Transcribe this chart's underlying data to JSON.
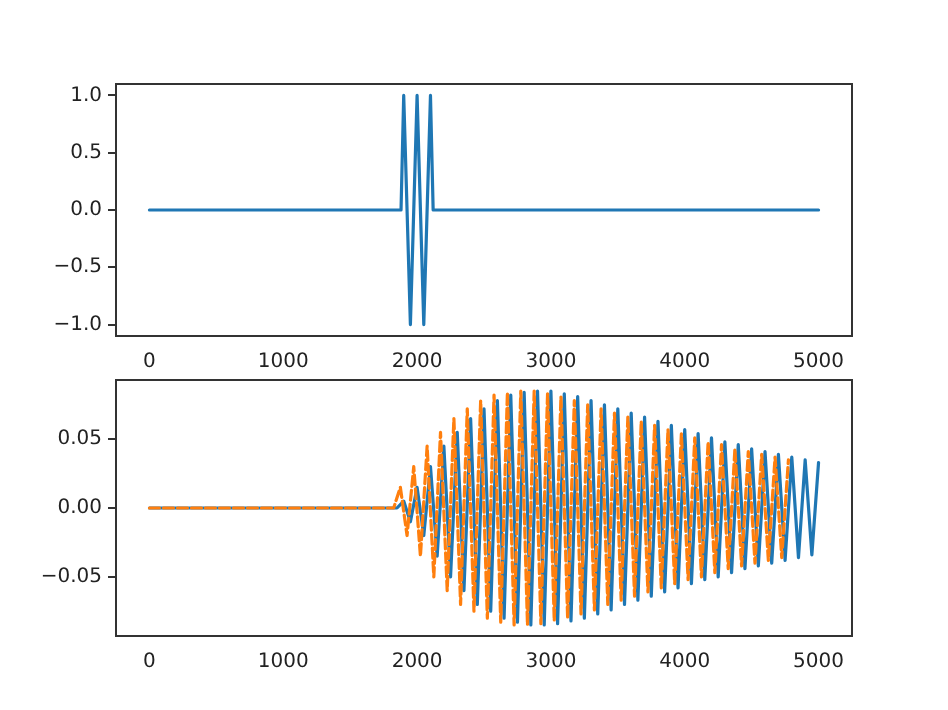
{
  "chart_data": [
    {
      "type": "line",
      "marker": "none",
      "line_style": "solid",
      "xlim": [
        -250,
        5250
      ],
      "xticks": [
        0,
        1000,
        2000,
        3000,
        4000,
        5000
      ],
      "ylim": [
        -1.1,
        1.1
      ],
      "yticks": [
        {
          "value": -1,
          "label": "−1.0"
        },
        {
          "value": -0.5,
          "label": "−0.5"
        },
        {
          "value": 0,
          "label": "0.0"
        },
        {
          "value": 0.5,
          "label": "0.5"
        },
        {
          "value": 1,
          "label": "1.0"
        }
      ],
      "series": [
        {
          "color": "#1f77b4",
          "x": [
            0,
            1880,
            1900,
            1950,
            2000,
            2050,
            2100,
            2120,
            5000
          ],
          "values": [
            0,
            0,
            1,
            -1,
            1,
            -1,
            1,
            0,
            0
          ]
        }
      ]
    },
    {
      "type": "line",
      "marker": "none",
      "xlim": [
        -250,
        5250
      ],
      "xticks": [
        0,
        1000,
        2000,
        3000,
        4000,
        5000
      ],
      "ylim": [
        -0.093,
        0.093
      ],
      "yticks": [
        {
          "value": -0.05,
          "label": "−0.05"
        },
        {
          "value": 0,
          "label": "0.00"
        },
        {
          "value": 0.05,
          "label": "0.05"
        }
      ],
      "series": [
        {
          "color": "#1f77b4",
          "line_style": "solid",
          "x": [
            0,
            1850,
            1900,
            1950,
            2000,
            2050,
            2100,
            2150,
            2200,
            2250,
            2300,
            2350,
            2400,
            2450,
            2500,
            2550,
            2600,
            2650,
            2700,
            2750,
            2800,
            2850,
            2900,
            2950,
            3000,
            3050,
            3100,
            3150,
            3200,
            3250,
            3300,
            3350,
            3400,
            3450,
            3500,
            3550,
            3600,
            3650,
            3700,
            3750,
            3800,
            3850,
            3900,
            3950,
            4000,
            4050,
            4100,
            4150,
            4200,
            4250,
            4300,
            4350,
            4400,
            4450,
            4500,
            4550,
            4600,
            4650,
            4700,
            4750,
            4800,
            4850,
            4900,
            4950,
            5000
          ],
          "values": [
            0,
            0,
            0.005,
            -0.01,
            0.015,
            -0.02,
            0.03,
            -0.035,
            0.045,
            -0.05,
            0.055,
            -0.06,
            0.065,
            -0.07,
            0.072,
            -0.075,
            0.078,
            -0.08,
            0.082,
            -0.083,
            0.084,
            -0.085,
            0.085,
            -0.085,
            0.085,
            -0.084,
            0.083,
            -0.082,
            0.081,
            -0.08,
            0.078,
            -0.077,
            0.075,
            -0.074,
            0.072,
            -0.07,
            0.069,
            -0.067,
            0.066,
            -0.064,
            0.063,
            -0.061,
            0.06,
            -0.058,
            0.057,
            -0.055,
            0.054,
            -0.052,
            0.051,
            -0.05,
            0.048,
            -0.047,
            0.046,
            -0.044,
            0.043,
            -0.042,
            0.041,
            -0.04,
            0.039,
            -0.038,
            0.037,
            -0.036,
            0.035,
            -0.034,
            0.033
          ]
        },
        {
          "color": "#ff7f0e",
          "line_style": "dashed",
          "x": [
            0,
            1825,
            1875,
            1925,
            1975,
            2025,
            2075,
            2125,
            2175,
            2225,
            2275,
            2325,
            2375,
            2425,
            2475,
            2525,
            2575,
            2625,
            2675,
            2725,
            2775,
            2825,
            2875,
            2925,
            2975,
            3025,
            3075,
            3125,
            3175,
            3225,
            3275,
            3325,
            3375,
            3425,
            3475,
            3525,
            3575,
            3625,
            3675,
            3725,
            3775,
            3825,
            3875,
            3925,
            3975,
            4025,
            4075,
            4125,
            4175,
            4225,
            4275,
            4325,
            4375,
            4425,
            4475,
            4525,
            4575,
            4625,
            4675,
            4725,
            4775
          ],
          "values": [
            0,
            0,
            0.015,
            -0.02,
            0.03,
            -0.035,
            0.045,
            -0.05,
            0.055,
            -0.06,
            0.065,
            -0.07,
            0.072,
            -0.075,
            0.078,
            -0.08,
            0.082,
            -0.083,
            0.084,
            -0.085,
            0.085,
            -0.085,
            0.085,
            -0.084,
            0.083,
            -0.082,
            0.081,
            -0.08,
            0.078,
            -0.077,
            0.075,
            -0.074,
            0.072,
            -0.07,
            0.069,
            -0.067,
            0.066,
            -0.064,
            0.063,
            -0.061,
            0.06,
            -0.058,
            0.057,
            -0.055,
            0.054,
            -0.052,
            0.051,
            -0.05,
            0.048,
            -0.047,
            0.046,
            -0.044,
            0.043,
            -0.042,
            0.041,
            -0.04,
            0.039,
            -0.038,
            0.037,
            -0.036,
            0.035
          ]
        }
      ]
    }
  ]
}
